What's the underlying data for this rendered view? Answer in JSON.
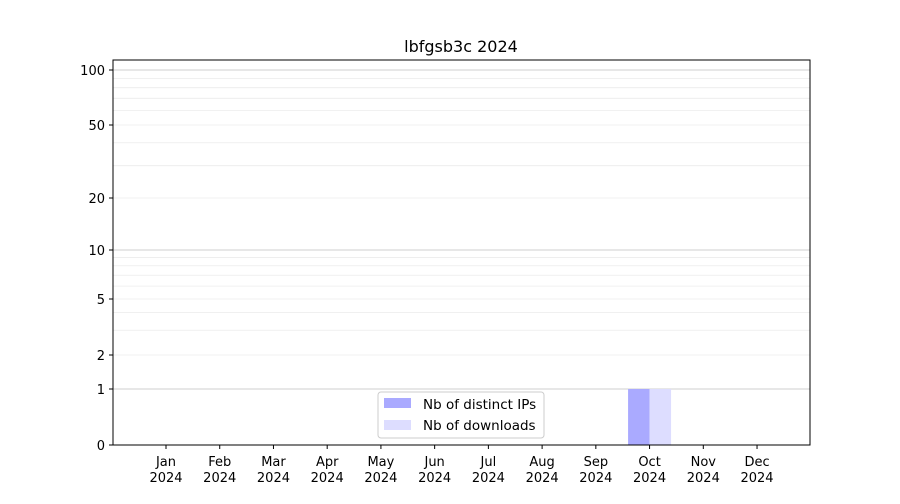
{
  "chart_data": {
    "type": "bar",
    "title": "lbfgsb3c 2024",
    "xlabel": "",
    "ylabel": "",
    "categories": [
      "Jan\n2024",
      "Feb\n2024",
      "Mar\n2024",
      "Apr\n2024",
      "May\n2024",
      "Jun\n2024",
      "Jul\n2024",
      "Aug\n2024",
      "Sep\n2024",
      "Oct\n2024",
      "Nov\n2024",
      "Dec\n2024"
    ],
    "y_scale": "symlog",
    "yticks": [
      0,
      1,
      2,
      5,
      10,
      20,
      50,
      100
    ],
    "ylim": [
      0,
      114
    ],
    "grid": true,
    "legend_position": "lower-center",
    "series": [
      {
        "name": "Nb of distinct IPs",
        "color": "#aaaaff",
        "values": [
          0,
          0,
          0,
          0,
          0,
          0,
          0,
          0,
          0,
          1,
          0,
          0
        ]
      },
      {
        "name": "Nb of downloads",
        "color": "#ddddff",
        "values": [
          0,
          0,
          0,
          0,
          0,
          0,
          0,
          0,
          0,
          1,
          0,
          0
        ]
      }
    ]
  }
}
